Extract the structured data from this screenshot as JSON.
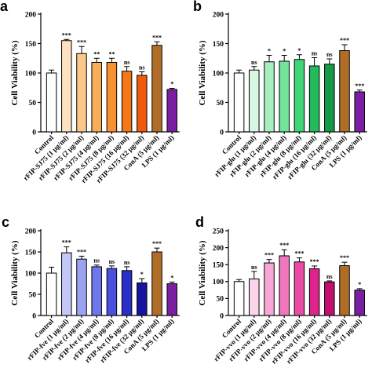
{
  "chart_data": [
    {
      "panel": "a",
      "type": "bar",
      "ylabel": "Cell Viability (%)",
      "ylim": [
        0,
        200
      ],
      "yticks": [
        0,
        50,
        100,
        150,
        200
      ],
      "categories": [
        "Control",
        "rFIP-SJ75 (1 μg/ml)",
        "rFIP-SJ75 (2 μg/ml)",
        "rFIP-SJ75 (4 μg/ml)",
        "rFIP-SJ75 (8 μg/ml)",
        "rFIP-SJ75 (16 μg/ml)",
        "rFIP-SJ75 (32 μg/ml)",
        "ConA (5 μg/ml)",
        "LPS (1 μg/ml)"
      ],
      "values": [
        100,
        155,
        133,
        118,
        118,
        103,
        96,
        147,
        72
      ],
      "errors": [
        5,
        2,
        12,
        7,
        7,
        8,
        6,
        6,
        2
      ],
      "significance": [
        "",
        "***",
        "***",
        "**",
        "**",
        "ns",
        "ns",
        "***",
        "*"
      ],
      "colors": [
        "#ffffff",
        "#fde2c0",
        "#fbc88a",
        "#f9ad58",
        "#f79232",
        "#f4771a",
        "#ef5a0c",
        "#b06d28",
        "#7a1fa2"
      ]
    },
    {
      "panel": "b",
      "type": "bar",
      "ylabel": "Cell Viability (%)",
      "ylim": [
        0,
        200
      ],
      "yticks": [
        0,
        50,
        100,
        150,
        200
      ],
      "categories": [
        "Control",
        "rFIP-glu (1 μg/ml)",
        "rFIP-glu (2 μg/ml)",
        "rFIP-glu (4 μg/ml)",
        "rFIP-glu (8 μg/ml)",
        "rFIP-glu (16 μg/ml)",
        "rFIP-glu (32 μg/ml)",
        "ConA (5 μg/ml)",
        "LPS (1 μg/ml)"
      ],
      "values": [
        100,
        105,
        119,
        120,
        123,
        112,
        115,
        138,
        68
      ],
      "errors": [
        5,
        6,
        11,
        10,
        8,
        14,
        9,
        10,
        3
      ],
      "significance": [
        "",
        "ns",
        "*",
        "*",
        "*",
        "ns",
        "ns",
        "***",
        "***"
      ],
      "colors": [
        "#ffffff",
        "#d8f7e2",
        "#a8efbf",
        "#72e39a",
        "#3fd677",
        "#22bb5c",
        "#169a48",
        "#b06d28",
        "#7a1fa2"
      ]
    },
    {
      "panel": "c",
      "type": "bar",
      "ylabel": "Cell Viability (%)",
      "ylim": [
        0,
        200
      ],
      "yticks": [
        0,
        50,
        100,
        150,
        200
      ],
      "categories": [
        "Control",
        "rFIP-fve (1 μg/ml)",
        "rFIP-fve (2 μg/ml)",
        "rFIP-fve (4 μg/ml)",
        "rFIP-fve (8 μg/ml)",
        "rFIP-fve (16 μg/ml)",
        "rFIP-fve (32 μg/ml)",
        "ConA (5 μg/ml)",
        "LPS (1 μg/ml)"
      ],
      "values": [
        100,
        148,
        133,
        115,
        111,
        106,
        77,
        150,
        75
      ],
      "errors": [
        14,
        14,
        7,
        4,
        6,
        9,
        10,
        9,
        4
      ],
      "significance": [
        "",
        "***",
        "***",
        "ns",
        "ns",
        "ns",
        "*",
        "***",
        "*"
      ],
      "colors": [
        "#ffffff",
        "#c4c8f8",
        "#9ca2f2",
        "#7077ea",
        "#4a50de",
        "#2a2fc8",
        "#1515a0",
        "#b06d28",
        "#7a1fa2"
      ]
    },
    {
      "panel": "d",
      "type": "bar",
      "ylabel": "Cell Viability (%)",
      "ylim": [
        0,
        250
      ],
      "yticks": [
        0,
        50,
        100,
        150,
        200,
        250
      ],
      "categories": [
        "Control",
        "rFIP-vvo (1 μg/ml)",
        "rFIP-vvo (2 μg/ml)",
        "rFIP-vvo (4 μg/ml)",
        "rFIP-vvo (8 μg/ml)",
        "rFIP-vvo (16 μg/ml)",
        "rFIP-vvo (32 μg/ml)",
        "ConA (5 μg/ml)",
        "LPS (1 μg/ml)"
      ],
      "values": [
        100,
        108,
        155,
        176,
        158,
        138,
        99,
        147,
        75
      ],
      "errors": [
        6,
        22,
        10,
        18,
        12,
        8,
        3,
        10,
        4
      ],
      "significance": [
        "",
        "ns",
        "***",
        "***",
        "***",
        "***",
        "ns",
        "***",
        "*"
      ],
      "colors": [
        "#ffffff",
        "#fbd5ec",
        "#f7a8d6",
        "#f177bd",
        "#ea4ba4",
        "#de248a",
        "#c20f70",
        "#b06d28",
        "#7a1fa2"
      ]
    }
  ]
}
